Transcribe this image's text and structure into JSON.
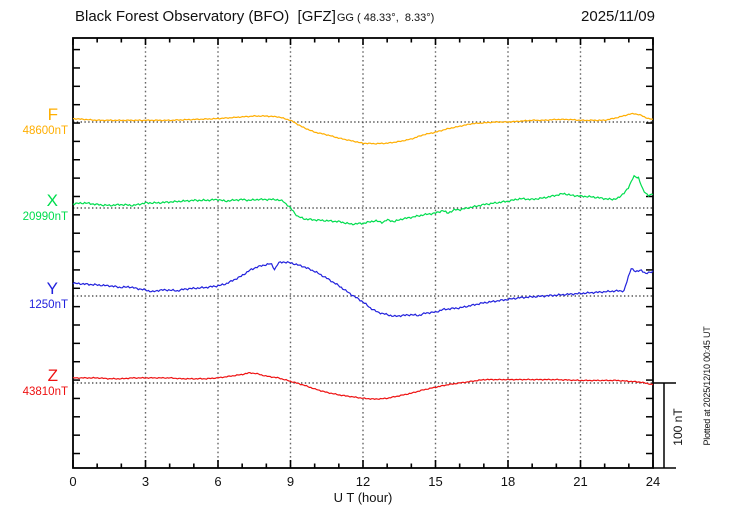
{
  "header": {
    "title": "Black Forest Observatory (BFO)  [GFZ]",
    "coords": "GG ( 48.33°,  8.33°)",
    "date": "2025/11/09"
  },
  "side_note": "Plotted at 2025/12/10 00:45 UT",
  "chart_data": {
    "type": "line",
    "title": "Black Forest Observatory (BFO) [GFZ] magnetogram 2025/11/09",
    "xlabel": "U T (hour)",
    "xlim": [
      0,
      24
    ],
    "x_tick_labels": [
      "0",
      "3",
      "6",
      "9",
      "12",
      "15",
      "18",
      "21",
      "24"
    ],
    "x_major_step": 3,
    "x_minor_step": 1,
    "grid": "dotted vertical at 3h steps, dotted horizontal baseline per trace",
    "legend_position": "left of each trace",
    "y_unit": "nT",
    "scale_bar": {
      "label": "100 nT",
      "nT": 100
    },
    "series": [
      {
        "name": "F",
        "baseline_label": "48600nT",
        "baseline_value_nT": 48600,
        "color": "#FFAE00",
        "points": [
          [
            0,
            4
          ],
          [
            1,
            2
          ],
          [
            2,
            2
          ],
          [
            3,
            2
          ],
          [
            4,
            2
          ],
          [
            5,
            3
          ],
          [
            6,
            4
          ],
          [
            6.5,
            5
          ],
          [
            7,
            6
          ],
          [
            7.5,
            7
          ],
          [
            8,
            7
          ],
          [
            8.5,
            6
          ],
          [
            9,
            2
          ],
          [
            9.5,
            -6
          ],
          [
            10,
            -12
          ],
          [
            10.5,
            -15
          ],
          [
            11,
            -19
          ],
          [
            11.5,
            -22
          ],
          [
            12,
            -25
          ],
          [
            12.5,
            -25.5
          ],
          [
            13,
            -25
          ],
          [
            13.5,
            -23
          ],
          [
            14,
            -20
          ],
          [
            14.5,
            -15
          ],
          [
            15,
            -12
          ],
          [
            15.5,
            -8
          ],
          [
            16,
            -5
          ],
          [
            16.5,
            -2
          ],
          [
            17,
            -1
          ],
          [
            17.5,
            0
          ],
          [
            18,
            0
          ],
          [
            18.5,
            1
          ],
          [
            19,
            2
          ],
          [
            19.5,
            2
          ],
          [
            20,
            3
          ],
          [
            20.5,
            3
          ],
          [
            21,
            2
          ],
          [
            21.5,
            2
          ],
          [
            22,
            2
          ],
          [
            22.5,
            5
          ],
          [
            23,
            9
          ],
          [
            23.2,
            10
          ],
          [
            23.5,
            8
          ],
          [
            23.8,
            4
          ],
          [
            24,
            3
          ]
        ]
      },
      {
        "name": "X",
        "baseline_label": "20990nT",
        "baseline_value_nT": 20990,
        "color": "#00DD4E",
        "points": [
          [
            0,
            5
          ],
          [
            0.5,
            6
          ],
          [
            1,
            4
          ],
          [
            1.5,
            3
          ],
          [
            2,
            4
          ],
          [
            2.5,
            3
          ],
          [
            3,
            6
          ],
          [
            3.5,
            6
          ],
          [
            4,
            7
          ],
          [
            4.5,
            8
          ],
          [
            5,
            9
          ],
          [
            5.5,
            9
          ],
          [
            6,
            10
          ],
          [
            6.3,
            8
          ],
          [
            6.6,
            9
          ],
          [
            7,
            10
          ],
          [
            7.3,
            9
          ],
          [
            7.6,
            10
          ],
          [
            8,
            10
          ],
          [
            8.4,
            10
          ],
          [
            8.7,
            8
          ],
          [
            9,
            0
          ],
          [
            9.3,
            -10
          ],
          [
            9.6,
            -13
          ],
          [
            10,
            -14
          ],
          [
            10.5,
            -15
          ],
          [
            11,
            -16
          ],
          [
            11.5,
            -19
          ],
          [
            12,
            -18
          ],
          [
            12.5,
            -15
          ],
          [
            12.8,
            -17
          ],
          [
            13,
            -14
          ],
          [
            13.3,
            -16
          ],
          [
            13.6,
            -13
          ],
          [
            14,
            -11
          ],
          [
            14.5,
            -8
          ],
          [
            15,
            -6
          ],
          [
            15.3,
            -3
          ],
          [
            15.5,
            -6
          ],
          [
            15.8,
            -2
          ],
          [
            16,
            -2
          ],
          [
            16.5,
            1
          ],
          [
            17,
            4
          ],
          [
            17.5,
            6
          ],
          [
            18,
            8
          ],
          [
            18.5,
            11
          ],
          [
            19,
            10
          ],
          [
            19.5,
            12
          ],
          [
            20,
            15
          ],
          [
            20.3,
            17
          ],
          [
            20.6,
            15
          ],
          [
            21,
            14
          ],
          [
            21.5,
            13
          ],
          [
            22,
            11
          ],
          [
            22.3,
            10
          ],
          [
            22.6,
            12
          ],
          [
            23,
            24
          ],
          [
            23.2,
            38
          ],
          [
            23.4,
            35
          ],
          [
            23.6,
            21
          ],
          [
            23.8,
            14
          ],
          [
            24,
            17
          ]
        ]
      },
      {
        "name": "Y",
        "baseline_label": "1250nT",
        "baseline_value_nT": 1250,
        "color": "#2222DD",
        "points": [
          [
            0,
            15
          ],
          [
            0.5,
            14
          ],
          [
            1,
            13
          ],
          [
            1.5,
            12
          ],
          [
            2,
            10
          ],
          [
            2.3,
            11
          ],
          [
            2.6,
            9
          ],
          [
            3,
            7
          ],
          [
            3.3,
            5
          ],
          [
            3.6,
            7
          ],
          [
            4,
            7
          ],
          [
            4.3,
            6
          ],
          [
            4.6,
            8
          ],
          [
            5,
            9
          ],
          [
            5.5,
            10
          ],
          [
            6,
            12
          ],
          [
            6.3,
            14
          ],
          [
            6.6,
            18
          ],
          [
            7,
            24
          ],
          [
            7.3,
            30
          ],
          [
            7.6,
            34
          ],
          [
            8,
            37
          ],
          [
            8.2,
            38
          ],
          [
            8.35,
            31
          ],
          [
            8.5,
            39
          ],
          [
            8.7,
            40
          ],
          [
            9,
            39
          ],
          [
            9.5,
            35
          ],
          [
            10,
            29
          ],
          [
            10.5,
            21
          ],
          [
            11,
            12
          ],
          [
            11.5,
            2
          ],
          [
            12,
            -7
          ],
          [
            12.3,
            -14
          ],
          [
            12.6,
            -19
          ],
          [
            13,
            -22
          ],
          [
            13.3,
            -24
          ],
          [
            13.6,
            -23
          ],
          [
            14,
            -22
          ],
          [
            14.3,
            -23
          ],
          [
            14.6,
            -20
          ],
          [
            15,
            -19
          ],
          [
            15.3,
            -16
          ],
          [
            15.6,
            -15
          ],
          [
            16,
            -14
          ],
          [
            16.5,
            -11
          ],
          [
            17,
            -8
          ],
          [
            17.5,
            -6
          ],
          [
            18,
            -4
          ],
          [
            18.5,
            -2
          ],
          [
            19,
            -1
          ],
          [
            19.5,
            0
          ],
          [
            20,
            1
          ],
          [
            20.5,
            2
          ],
          [
            21,
            3
          ],
          [
            21.5,
            4
          ],
          [
            22,
            5
          ],
          [
            22.5,
            6
          ],
          [
            22.8,
            6
          ],
          [
            23,
            24
          ],
          [
            23.1,
            33
          ],
          [
            23.3,
            28
          ],
          [
            23.5,
            31
          ],
          [
            23.7,
            26
          ],
          [
            23.85,
            28
          ],
          [
            24,
            29
          ]
        ]
      },
      {
        "name": "Z",
        "baseline_label": "43810nT",
        "baseline_value_nT": 43810,
        "color": "#EE1111",
        "points": [
          [
            0,
            6
          ],
          [
            0.5,
            6
          ],
          [
            1,
            6
          ],
          [
            1.5,
            5
          ],
          [
            2,
            5
          ],
          [
            2.5,
            6
          ],
          [
            3,
            6
          ],
          [
            3.5,
            6
          ],
          [
            4,
            6
          ],
          [
            4.5,
            5
          ],
          [
            5,
            5
          ],
          [
            5.5,
            5
          ],
          [
            6,
            6
          ],
          [
            6.5,
            8
          ],
          [
            7,
            10
          ],
          [
            7.3,
            12
          ],
          [
            7.6,
            11
          ],
          [
            8,
            8
          ],
          [
            8.5,
            6
          ],
          [
            9,
            2
          ],
          [
            9.5,
            -2
          ],
          [
            10,
            -7
          ],
          [
            10.5,
            -11
          ],
          [
            11,
            -14
          ],
          [
            11.5,
            -16
          ],
          [
            12,
            -18
          ],
          [
            12.5,
            -19
          ],
          [
            13,
            -18
          ],
          [
            13.5,
            -15
          ],
          [
            14,
            -12
          ],
          [
            14.5,
            -8
          ],
          [
            15,
            -5
          ],
          [
            15.5,
            -2
          ],
          [
            16,
            0
          ],
          [
            16.5,
            2
          ],
          [
            17,
            4
          ],
          [
            17.5,
            4
          ],
          [
            18,
            4
          ],
          [
            19,
            4
          ],
          [
            20,
            4
          ],
          [
            21,
            3
          ],
          [
            22,
            3
          ],
          [
            22.5,
            3
          ],
          [
            23,
            2
          ],
          [
            23.5,
            1
          ],
          [
            24,
            -2
          ]
        ]
      }
    ]
  }
}
